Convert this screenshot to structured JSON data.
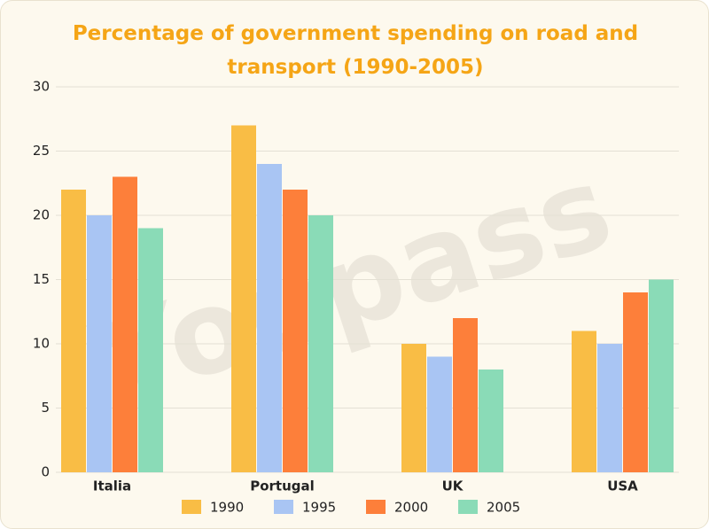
{
  "chart_data": {
    "type": "bar",
    "title": "Percentage of government spending on road and transport (1990-2005)",
    "watermark": "Youpass",
    "categories": [
      "Italia",
      "Portugal",
      "UK",
      "USA"
    ],
    "series": [
      {
        "name": "1990",
        "color": "#f9bd45",
        "values": [
          22,
          27,
          10,
          11
        ]
      },
      {
        "name": "1995",
        "color": "#a9c5f3",
        "values": [
          20,
          24,
          9,
          10
        ]
      },
      {
        "name": "2000",
        "color": "#fd7f3a",
        "values": [
          23,
          22,
          12,
          14
        ]
      },
      {
        "name": "2005",
        "color": "#8adbb7",
        "values": [
          19,
          20,
          8,
          15
        ]
      }
    ],
    "ylim": [
      0,
      30
    ],
    "yticks": [
      0,
      5,
      10,
      15,
      20,
      25,
      30
    ],
    "grid": true,
    "legend": "bottom"
  }
}
